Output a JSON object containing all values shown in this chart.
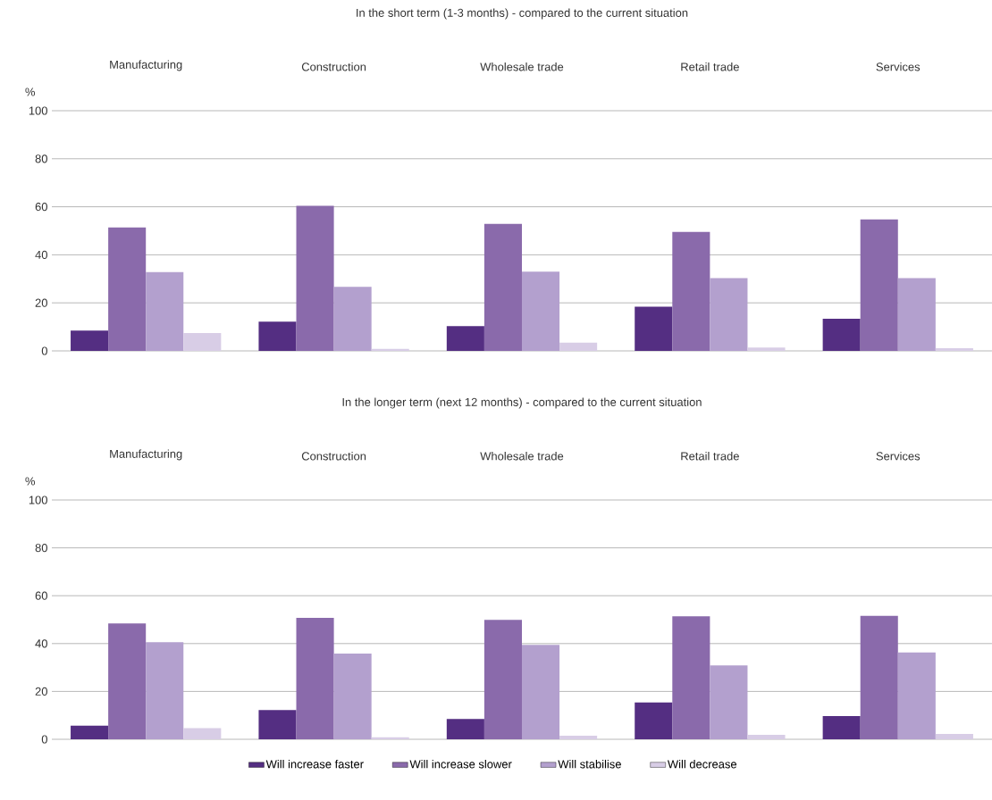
{
  "chart_data": [
    {
      "type": "bar",
      "title": "In the short term (1-3 months) - compared to the current situation",
      "ylabel": "%",
      "categories": [
        "Manufacturing",
        "Construction",
        "Wholesale trade",
        "Retail trade",
        "Services"
      ],
      "series": [
        {
          "color": "#542e82",
          "values": [
            8.5,
            12.2,
            10.3,
            18.4,
            13.4
          ]
        },
        {
          "color": "#8a6aab",
          "values": [
            51.4,
            60.4,
            52.9,
            49.5,
            54.7
          ]
        },
        {
          "color": "#b3a0ce",
          "values": [
            32.8,
            26.7,
            33,
            30.3,
            30.3
          ]
        },
        {
          "color": "#d8cde6",
          "values": [
            7.4,
            0.8,
            3.4,
            1.4,
            1.1
          ]
        }
      ],
      "ylim": [
        0,
        100
      ],
      "yticks": [
        0,
        20,
        40,
        60,
        80,
        100
      ],
      "grid": "y",
      "legend": false
    },
    {
      "type": "bar",
      "title": "In the longer term (next 12 months) - compared to the current situation",
      "ylabel": "%",
      "categories": [
        "Manufacturing",
        "Construction",
        "Wholesale trade",
        "Retail trade",
        "Services"
      ],
      "series": [
        {
          "name": "Will increase faster",
          "color": "#542e82",
          "values": [
            5.7,
            12.2,
            8.5,
            15.4,
            9.7
          ]
        },
        {
          "name": "Will increase slower",
          "color": "#8a6aab",
          "values": [
            48.4,
            50.7,
            49.9,
            51.4,
            51.6
          ]
        },
        {
          "name": "Will stabilise",
          "color": "#b3a0ce",
          "values": [
            40.6,
            35.8,
            39.5,
            30.9,
            36.3
          ]
        },
        {
          "name": "Will decrease",
          "color": "#d8cde6",
          "values": [
            4.7,
            0.8,
            1.5,
            1.9,
            2.2
          ]
        }
      ],
      "ylim": [
        0,
        100
      ],
      "yticks": [
        0,
        20,
        40,
        60,
        80,
        100
      ],
      "grid": "y",
      "legend": "bottom"
    }
  ]
}
